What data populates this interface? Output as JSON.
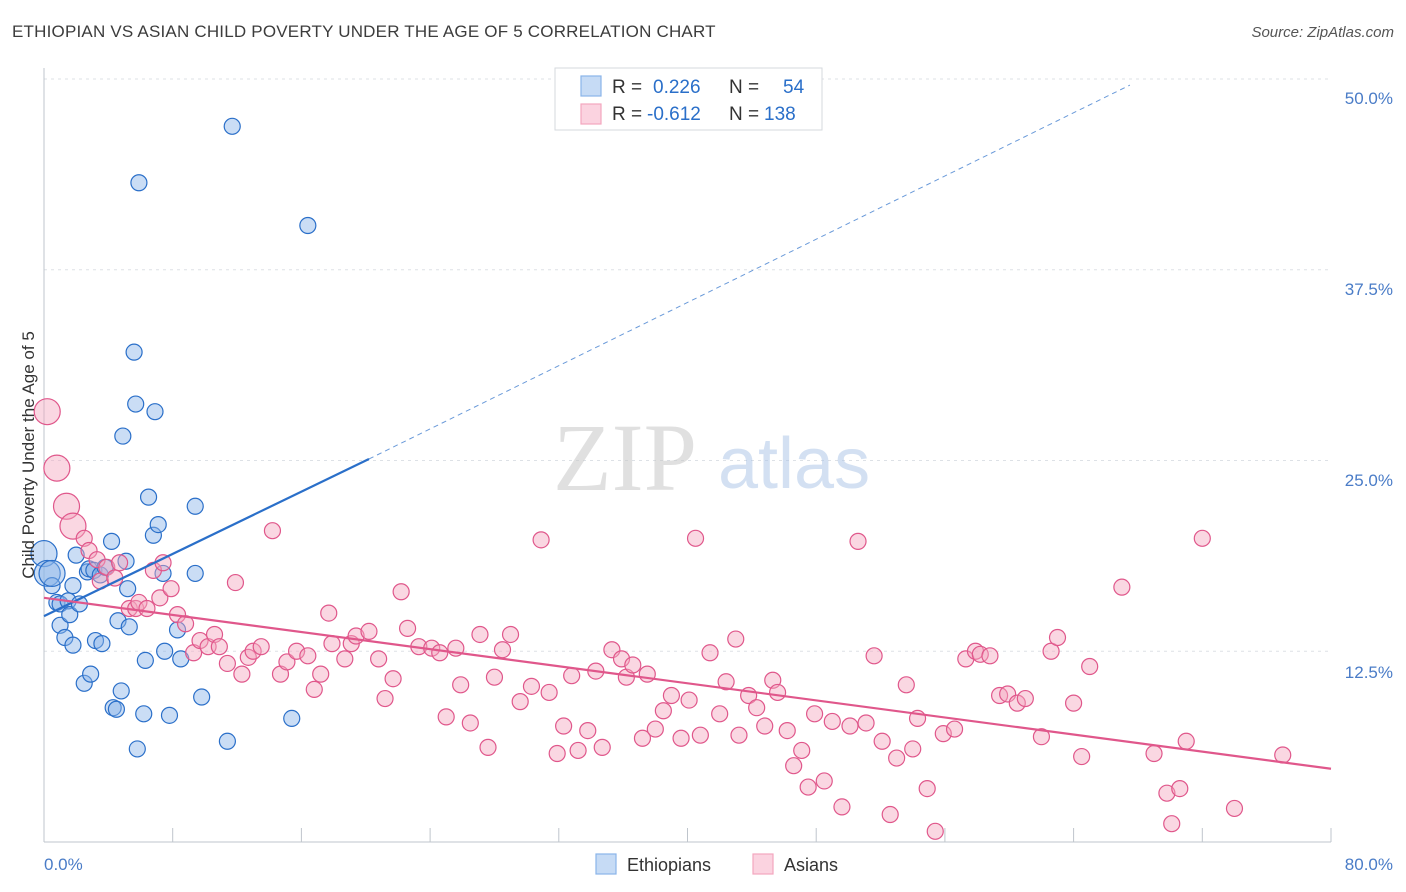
{
  "header": {
    "title": "ETHIOPIAN VS ASIAN CHILD POVERTY UNDER THE AGE OF 5 CORRELATION CHART",
    "source": "Source: ZipAtlas.com"
  },
  "watermark": {
    "zip": "ZIP",
    "atlas": "atlas"
  },
  "colors": {
    "ethiopians": "#8ab4e8",
    "ethiopians_line": "#2a6fc9",
    "asians": "#f4a6bf",
    "asians_line": "#e0578b",
    "tick_text": "#4a7cc7",
    "grid": "#dde1e6"
  },
  "legend_box": {
    "rows": [
      {
        "r_label": "R =",
        "r_value": "0.226",
        "n_label": "N =",
        "n_value": "54"
      },
      {
        "r_label": "R =",
        "r_value": "-0.612",
        "n_label": "N =",
        "n_value": "138"
      }
    ]
  },
  "bottom_legend": {
    "items": [
      "Ethiopians",
      "Asians"
    ]
  },
  "chart_data": {
    "type": "scatter",
    "title": "ETHIOPIAN VS ASIAN CHILD POVERTY UNDER THE AGE OF 5 CORRELATION CHART",
    "xlabel": "",
    "ylabel": "Child Poverty Under the Age of 5",
    "xlim": [
      0,
      80
    ],
    "ylim": [
      0,
      50
    ],
    "x_tick_labels": [
      "0.0%",
      "80.0%"
    ],
    "y_ticks": [
      12.5,
      25.0,
      37.5,
      50.0
    ],
    "y_tick_labels": [
      "12.5%",
      "25.0%",
      "37.5%",
      "50.0%"
    ],
    "grid": true,
    "legend_position": "top-center",
    "series": [
      {
        "name": "Ethiopians",
        "r": 0.226,
        "n": 54,
        "trend": {
          "x0": 0,
          "y0": 14.8,
          "x1": 20.2,
          "y1": 25.1,
          "dashed_to_x": 67.5,
          "dashed_to_y": 49.6
        },
        "points": [
          [
            0,
            18.9
          ],
          [
            0.2,
            17.6
          ],
          [
            0.5,
            16.8
          ],
          [
            0.8,
            15.7
          ],
          [
            1.0,
            15.6
          ],
          [
            1.0,
            14.2
          ],
          [
            1.3,
            13.4
          ],
          [
            1.5,
            15.8
          ],
          [
            1.6,
            14.9
          ],
          [
            1.8,
            16.8
          ],
          [
            1.8,
            12.9
          ],
          [
            2.0,
            18.8
          ],
          [
            2.2,
            15.6
          ],
          [
            2.5,
            10.4
          ],
          [
            2.7,
            17.7
          ],
          [
            2.8,
            17.9
          ],
          [
            2.9,
            11.0
          ],
          [
            3.1,
            17.8
          ],
          [
            3.2,
            13.2
          ],
          [
            3.5,
            17.5
          ],
          [
            3.6,
            13.0
          ],
          [
            3.8,
            18.0
          ],
          [
            4.2,
            19.7
          ],
          [
            4.3,
            8.8
          ],
          [
            4.5,
            8.7
          ],
          [
            4.6,
            14.5
          ],
          [
            4.9,
            26.6
          ],
          [
            4.8,
            9.9
          ],
          [
            5.1,
            18.4
          ],
          [
            5.2,
            16.6
          ],
          [
            5.3,
            14.1
          ],
          [
            5.6,
            32.1
          ],
          [
            5.7,
            28.7
          ],
          [
            5.8,
            6.1
          ],
          [
            5.9,
            43.2
          ],
          [
            6.2,
            8.4
          ],
          [
            6.3,
            11.9
          ],
          [
            6.5,
            22.6
          ],
          [
            6.8,
            20.1
          ],
          [
            6.9,
            28.2
          ],
          [
            7.1,
            20.8
          ],
          [
            7.4,
            17.6
          ],
          [
            7.5,
            12.5
          ],
          [
            7.8,
            8.3
          ],
          [
            8.3,
            13.9
          ],
          [
            8.5,
            12.0
          ],
          [
            9.4,
            17.6
          ],
          [
            9.4,
            22.0
          ],
          [
            9.8,
            9.5
          ],
          [
            11.4,
            6.6
          ],
          [
            11.7,
            46.9
          ],
          [
            15.4,
            8.1
          ],
          [
            16.4,
            40.4
          ],
          [
            0.5,
            17.6
          ]
        ]
      },
      {
        "name": "Asians",
        "r": -0.612,
        "n": 138,
        "trend": {
          "x0": 0,
          "y0": 16.0,
          "x1": 80,
          "y1": 4.8
        },
        "points": [
          [
            0.2,
            28.2
          ],
          [
            0.8,
            24.5
          ],
          [
            1.4,
            22.0
          ],
          [
            1.8,
            20.7
          ],
          [
            2.5,
            19.9
          ],
          [
            2.8,
            19.1
          ],
          [
            3.3,
            18.5
          ],
          [
            3.5,
            17.1
          ],
          [
            3.9,
            18.0
          ],
          [
            4.4,
            17.3
          ],
          [
            4.7,
            18.3
          ],
          [
            5.3,
            15.3
          ],
          [
            5.7,
            15.3
          ],
          [
            5.9,
            15.7
          ],
          [
            6.4,
            15.3
          ],
          [
            6.8,
            17.8
          ],
          [
            7.2,
            16.0
          ],
          [
            7.4,
            18.3
          ],
          [
            7.9,
            16.6
          ],
          [
            8.3,
            14.9
          ],
          [
            8.8,
            14.3
          ],
          [
            9.3,
            12.4
          ],
          [
            9.7,
            13.2
          ],
          [
            10.2,
            12.8
          ],
          [
            10.6,
            13.6
          ],
          [
            10.9,
            12.8
          ],
          [
            11.4,
            11.7
          ],
          [
            11.9,
            17.0
          ],
          [
            12.3,
            11.0
          ],
          [
            12.7,
            12.1
          ],
          [
            13.0,
            12.5
          ],
          [
            13.5,
            12.8
          ],
          [
            14.2,
            20.4
          ],
          [
            14.7,
            11.0
          ],
          [
            15.1,
            11.8
          ],
          [
            15.7,
            12.5
          ],
          [
            16.4,
            12.2
          ],
          [
            16.8,
            10.0
          ],
          [
            17.2,
            11.0
          ],
          [
            17.7,
            15.0
          ],
          [
            17.9,
            13.0
          ],
          [
            18.7,
            12.0
          ],
          [
            19.1,
            13.0
          ],
          [
            19.4,
            13.5
          ],
          [
            20.2,
            13.8
          ],
          [
            20.8,
            12.0
          ],
          [
            21.2,
            9.4
          ],
          [
            21.7,
            10.7
          ],
          [
            22.2,
            16.4
          ],
          [
            22.6,
            14.0
          ],
          [
            23.3,
            12.8
          ],
          [
            24.1,
            12.7
          ],
          [
            24.6,
            12.4
          ],
          [
            25.0,
            8.2
          ],
          [
            25.6,
            12.7
          ],
          [
            25.9,
            10.3
          ],
          [
            26.5,
            7.8
          ],
          [
            27.1,
            13.6
          ],
          [
            27.6,
            6.2
          ],
          [
            28.0,
            10.8
          ],
          [
            28.5,
            12.6
          ],
          [
            29.0,
            13.6
          ],
          [
            29.6,
            9.2
          ],
          [
            30.3,
            10.2
          ],
          [
            30.9,
            19.8
          ],
          [
            31.4,
            9.8
          ],
          [
            31.9,
            5.8
          ],
          [
            32.3,
            7.6
          ],
          [
            32.8,
            10.9
          ],
          [
            33.2,
            6.0
          ],
          [
            33.8,
            7.3
          ],
          [
            34.3,
            11.2
          ],
          [
            34.7,
            6.2
          ],
          [
            35.3,
            12.6
          ],
          [
            35.9,
            12.0
          ],
          [
            36.2,
            10.8
          ],
          [
            36.6,
            11.6
          ],
          [
            37.2,
            6.8
          ],
          [
            37.5,
            11.0
          ],
          [
            38.0,
            7.4
          ],
          [
            38.5,
            8.6
          ],
          [
            39.0,
            9.6
          ],
          [
            39.6,
            6.8
          ],
          [
            40.1,
            9.3
          ],
          [
            40.5,
            19.9
          ],
          [
            40.8,
            7.0
          ],
          [
            41.4,
            12.4
          ],
          [
            42.0,
            8.4
          ],
          [
            42.4,
            10.5
          ],
          [
            43.0,
            13.3
          ],
          [
            43.2,
            7.0
          ],
          [
            43.8,
            9.6
          ],
          [
            44.3,
            8.8
          ],
          [
            44.8,
            7.6
          ],
          [
            45.3,
            10.6
          ],
          [
            45.6,
            9.8
          ],
          [
            46.2,
            7.3
          ],
          [
            46.6,
            5.0
          ],
          [
            47.1,
            6.0
          ],
          [
            47.5,
            3.6
          ],
          [
            47.9,
            8.4
          ],
          [
            48.5,
            4.0
          ],
          [
            49.0,
            7.9
          ],
          [
            49.6,
            2.3
          ],
          [
            50.1,
            7.6
          ],
          [
            50.6,
            19.7
          ],
          [
            51.1,
            7.8
          ],
          [
            51.6,
            12.2
          ],
          [
            52.1,
            6.6
          ],
          [
            52.6,
            1.8
          ],
          [
            53.0,
            5.5
          ],
          [
            53.6,
            10.3
          ],
          [
            54.0,
            6.1
          ],
          [
            54.3,
            8.1
          ],
          [
            54.9,
            3.5
          ],
          [
            55.4,
            0.7
          ],
          [
            55.9,
            7.1
          ],
          [
            56.6,
            7.4
          ],
          [
            57.3,
            12.0
          ],
          [
            57.9,
            12.5
          ],
          [
            58.2,
            12.3
          ],
          [
            58.8,
            12.2
          ],
          [
            59.4,
            9.6
          ],
          [
            59.9,
            9.7
          ],
          [
            60.5,
            9.1
          ],
          [
            61.0,
            9.4
          ],
          [
            62.0,
            6.9
          ],
          [
            62.6,
            12.5
          ],
          [
            63.0,
            13.4
          ],
          [
            64.0,
            9.1
          ],
          [
            64.5,
            5.6
          ],
          [
            65.0,
            11.5
          ],
          [
            67.0,
            16.7
          ],
          [
            69.0,
            5.8
          ],
          [
            69.8,
            3.2
          ],
          [
            70.1,
            1.2
          ],
          [
            70.6,
            3.5
          ],
          [
            71.0,
            6.6
          ],
          [
            72.0,
            19.9
          ],
          [
            74.0,
            2.2
          ],
          [
            77.0,
            5.7
          ]
        ]
      }
    ]
  }
}
